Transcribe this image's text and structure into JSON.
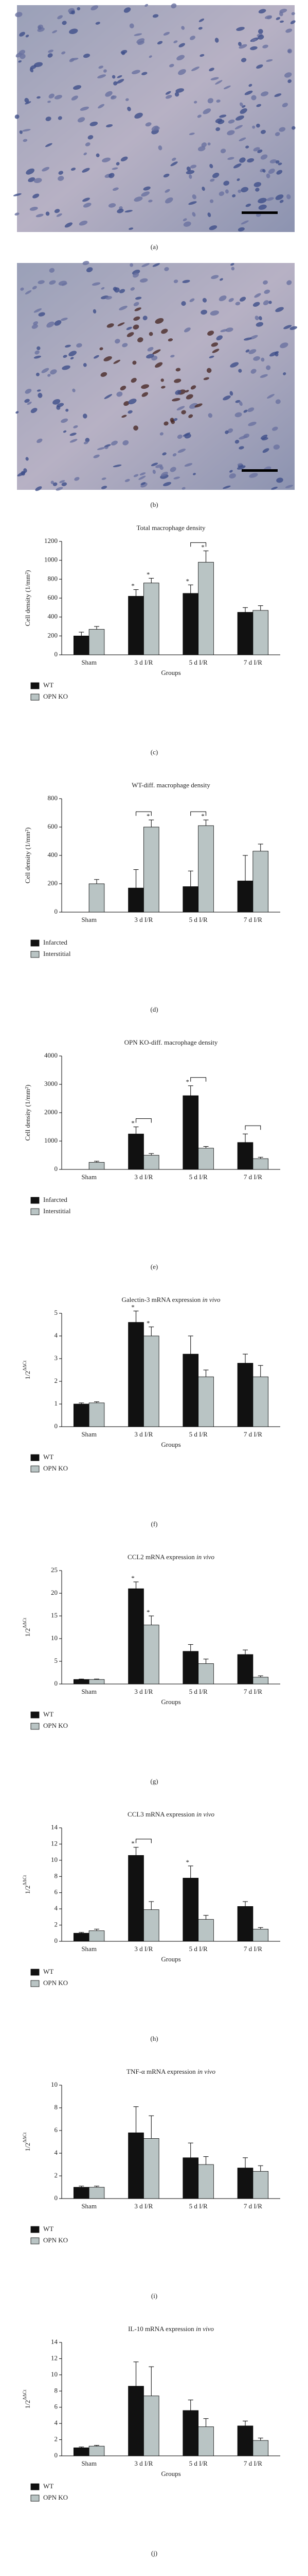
{
  "images": [
    {
      "label": "(a)"
    },
    {
      "label": "(b)"
    }
  ],
  "chart_data": [
    {
      "type": "bar",
      "panel_label": "(c)",
      "title": "Total macrophage density",
      "ylabel": "Cell density (1/mm²)",
      "xlabel": "Groups",
      "categories": [
        "Sham",
        "3 d I/R",
        "5 d I/R",
        "7 d I/R"
      ],
      "series": [
        {
          "name": "WT",
          "color": "#111111",
          "values": [
            200,
            620,
            650,
            450
          ],
          "errors": [
            40,
            70,
            90,
            50
          ]
        },
        {
          "name": "OPN KO",
          "color": "#b9c4c4",
          "values": [
            270,
            760,
            980,
            470
          ],
          "errors": [
            30,
            50,
            120,
            50
          ]
        }
      ],
      "ylim": [
        0,
        1200
      ],
      "yticks": [
        0,
        200,
        400,
        600,
        800,
        1000,
        1200
      ],
      "legend": "below-left",
      "stars": [
        {
          "text": "*",
          "series": 0,
          "index": 1
        },
        {
          "text": "*",
          "series": 1,
          "index": 1
        },
        {
          "text": "*",
          "series": 0,
          "index": 2
        },
        {
          "text": "*",
          "series": 1,
          "index": 2
        }
      ],
      "brackets": [
        2
      ]
    },
    {
      "type": "bar",
      "panel_label": "(d)",
      "title": "WT-diff. macrophage density",
      "ylabel": "Cell density (1/mm²)",
      "categories": [
        "Sham",
        "3 d I/R",
        "5 d I/R",
        "7 d I/R"
      ],
      "series": [
        {
          "name": "Infarcted",
          "color": "#111111",
          "values": [
            null,
            170,
            180,
            220
          ],
          "errors": [
            null,
            130,
            110,
            180
          ]
        },
        {
          "name": "Interstitial",
          "color": "#b9c4c4",
          "values": [
            200,
            600,
            610,
            430
          ],
          "errors": [
            30,
            50,
            40,
            50
          ]
        }
      ],
      "ylim": [
        0,
        800
      ],
      "yticks": [
        0,
        200,
        400,
        600,
        800
      ],
      "legend": "below-left",
      "stars": [
        {
          "text": "*",
          "series": 1,
          "index": 1
        },
        {
          "text": "*",
          "series": 1,
          "index": 2
        }
      ],
      "brackets": [
        1,
        2
      ]
    },
    {
      "type": "bar",
      "panel_label": "(e)",
      "title": "OPN KO-diff. macrophage density",
      "ylabel": "Cell density (1/mm²)",
      "categories": [
        "Sham",
        "3 d I/R",
        "5 d I/R",
        "7 d I/R"
      ],
      "series": [
        {
          "name": "Infarcted",
          "color": "#111111",
          "values": [
            null,
            1250,
            2600,
            950
          ],
          "errors": [
            null,
            250,
            350,
            300
          ]
        },
        {
          "name": "Interstitial",
          "color": "#b9c4c4",
          "values": [
            250,
            500,
            750,
            380
          ],
          "errors": [
            40,
            60,
            60,
            50
          ]
        }
      ],
      "ylim": [
        0,
        4000
      ],
      "yticks": [
        0,
        1000,
        2000,
        3000,
        4000
      ],
      "legend": "below-left",
      "stars": [
        {
          "text": "*",
          "series": 0,
          "index": 1
        },
        {
          "text": "*",
          "series": 0,
          "index": 2
        }
      ],
      "brackets": [
        1,
        2,
        3
      ]
    },
    {
      "type": "bar",
      "panel_label": "(f)",
      "title": "Galectin-3 mRNA expression",
      "title_italic": "in vivo",
      "ylabel": "1/2",
      "ylabel_sup": "ΔΔCt",
      "xlabel": "Groups",
      "categories": [
        "Sham",
        "3 d I/R",
        "5 d I/R",
        "7 d I/R"
      ],
      "series": [
        {
          "name": "WT",
          "color": "#111111",
          "values": [
            1.0,
            4.6,
            3.2,
            2.8
          ],
          "errors": [
            0.05,
            0.5,
            0.8,
            0.4
          ]
        },
        {
          "name": "OPN KO",
          "color": "#b9c4c4",
          "values": [
            1.05,
            4.0,
            2.2,
            2.2
          ],
          "errors": [
            0.05,
            0.4,
            0.3,
            0.5
          ]
        }
      ],
      "ylim": [
        0,
        5
      ],
      "yticks": [
        0,
        1,
        2,
        3,
        4,
        5
      ],
      "legend": "below-left",
      "stars": [
        {
          "text": "*",
          "series": 0,
          "index": 1
        },
        {
          "text": "*",
          "series": 1,
          "index": 1
        }
      ]
    },
    {
      "type": "bar",
      "panel_label": "(g)",
      "title": "CCL2 mRNA expression",
      "title_italic": "in vivo",
      "ylabel": "1/2",
      "ylabel_sup": "ΔΔCt",
      "xlabel": "Groups",
      "categories": [
        "Sham",
        "3 d I/R",
        "5 d I/R",
        "7 d I/R"
      ],
      "series": [
        {
          "name": "WT",
          "color": "#111111",
          "values": [
            1.0,
            21,
            7.2,
            6.5
          ],
          "errors": [
            0.1,
            1.5,
            1.5,
            1.0
          ]
        },
        {
          "name": "OPN KO",
          "color": "#b9c4c4",
          "values": [
            1.0,
            13,
            4.5,
            1.5
          ],
          "errors": [
            0.1,
            2.0,
            1.0,
            0.3
          ]
        }
      ],
      "ylim": [
        0,
        25
      ],
      "yticks": [
        0,
        5,
        10,
        15,
        20,
        25
      ],
      "legend": "below-left",
      "stars": [
        {
          "text": "*",
          "series": 0,
          "index": 1
        },
        {
          "text": "*",
          "series": 1,
          "index": 1
        }
      ]
    },
    {
      "type": "bar",
      "panel_label": "(h)",
      "title": "CCL3 mRNA expression",
      "title_italic": "in vivo",
      "ylabel": "1/2",
      "ylabel_sup": "ΔΔCt",
      "xlabel": "Groups",
      "categories": [
        "Sham",
        "3 d I/R",
        "5 d I/R",
        "7 d I/R"
      ],
      "series": [
        {
          "name": "WT",
          "color": "#111111",
          "values": [
            1.0,
            10.6,
            7.8,
            4.3
          ],
          "errors": [
            0.1,
            1.0,
            1.5,
            0.6
          ]
        },
        {
          "name": "OPN KO",
          "color": "#b9c4c4",
          "values": [
            1.3,
            3.9,
            2.7,
            1.5
          ],
          "errors": [
            0.2,
            1.0,
            0.5,
            0.2
          ]
        }
      ],
      "ylim": [
        0,
        14
      ],
      "yticks": [
        0,
        2,
        4,
        6,
        8,
        10,
        12,
        14
      ],
      "legend": "below-left",
      "stars": [
        {
          "text": "*",
          "series": 0,
          "index": 1
        },
        {
          "text": "*",
          "series": 0,
          "index": 2
        }
      ],
      "brackets": [
        1
      ]
    },
    {
      "type": "bar",
      "panel_label": "(i)",
      "title": "TNF-α mRNA expression",
      "title_italic": "in vivo",
      "ylabel": "1/2",
      "ylabel_sup": "ΔΔCt",
      "categories": [
        "Sham",
        "3 d I/R",
        "5 d I/R",
        "7 d I/R"
      ],
      "series": [
        {
          "name": "WT",
          "color": "#111111",
          "values": [
            1.0,
            5.8,
            3.6,
            2.7
          ],
          "errors": [
            0.1,
            2.3,
            1.3,
            0.9
          ]
        },
        {
          "name": "OPN KO",
          "color": "#b9c4c4",
          "values": [
            1.0,
            5.3,
            3.0,
            2.4
          ],
          "errors": [
            0.1,
            2.0,
            0.7,
            0.5
          ]
        }
      ],
      "ylim": [
        0,
        10
      ],
      "yticks": [
        0,
        2,
        4,
        6,
        8,
        10
      ],
      "legend": "below-left"
    },
    {
      "type": "bar",
      "panel_label": "(j)",
      "title": "IL-10 mRNA expression",
      "title_italic": "in vivo",
      "ylabel": "1/2",
      "ylabel_sup": "ΔΔCt",
      "xlabel": "Groups",
      "categories": [
        "Sham",
        "3 d I/R",
        "5 d I/R",
        "7 d I/R"
      ],
      "series": [
        {
          "name": "WT",
          "color": "#111111",
          "values": [
            1.0,
            8.6,
            5.6,
            3.7
          ],
          "errors": [
            0.1,
            3.0,
            1.3,
            0.6
          ]
        },
        {
          "name": "OPN KO",
          "color": "#b9c4c4",
          "values": [
            1.2,
            7.4,
            3.6,
            1.9
          ],
          "errors": [
            0.1,
            3.6,
            1.0,
            0.3
          ]
        }
      ],
      "ylim": [
        0,
        14
      ],
      "yticks": [
        0,
        2,
        4,
        6,
        8,
        10,
        12,
        14
      ],
      "legend": "below-left"
    }
  ]
}
